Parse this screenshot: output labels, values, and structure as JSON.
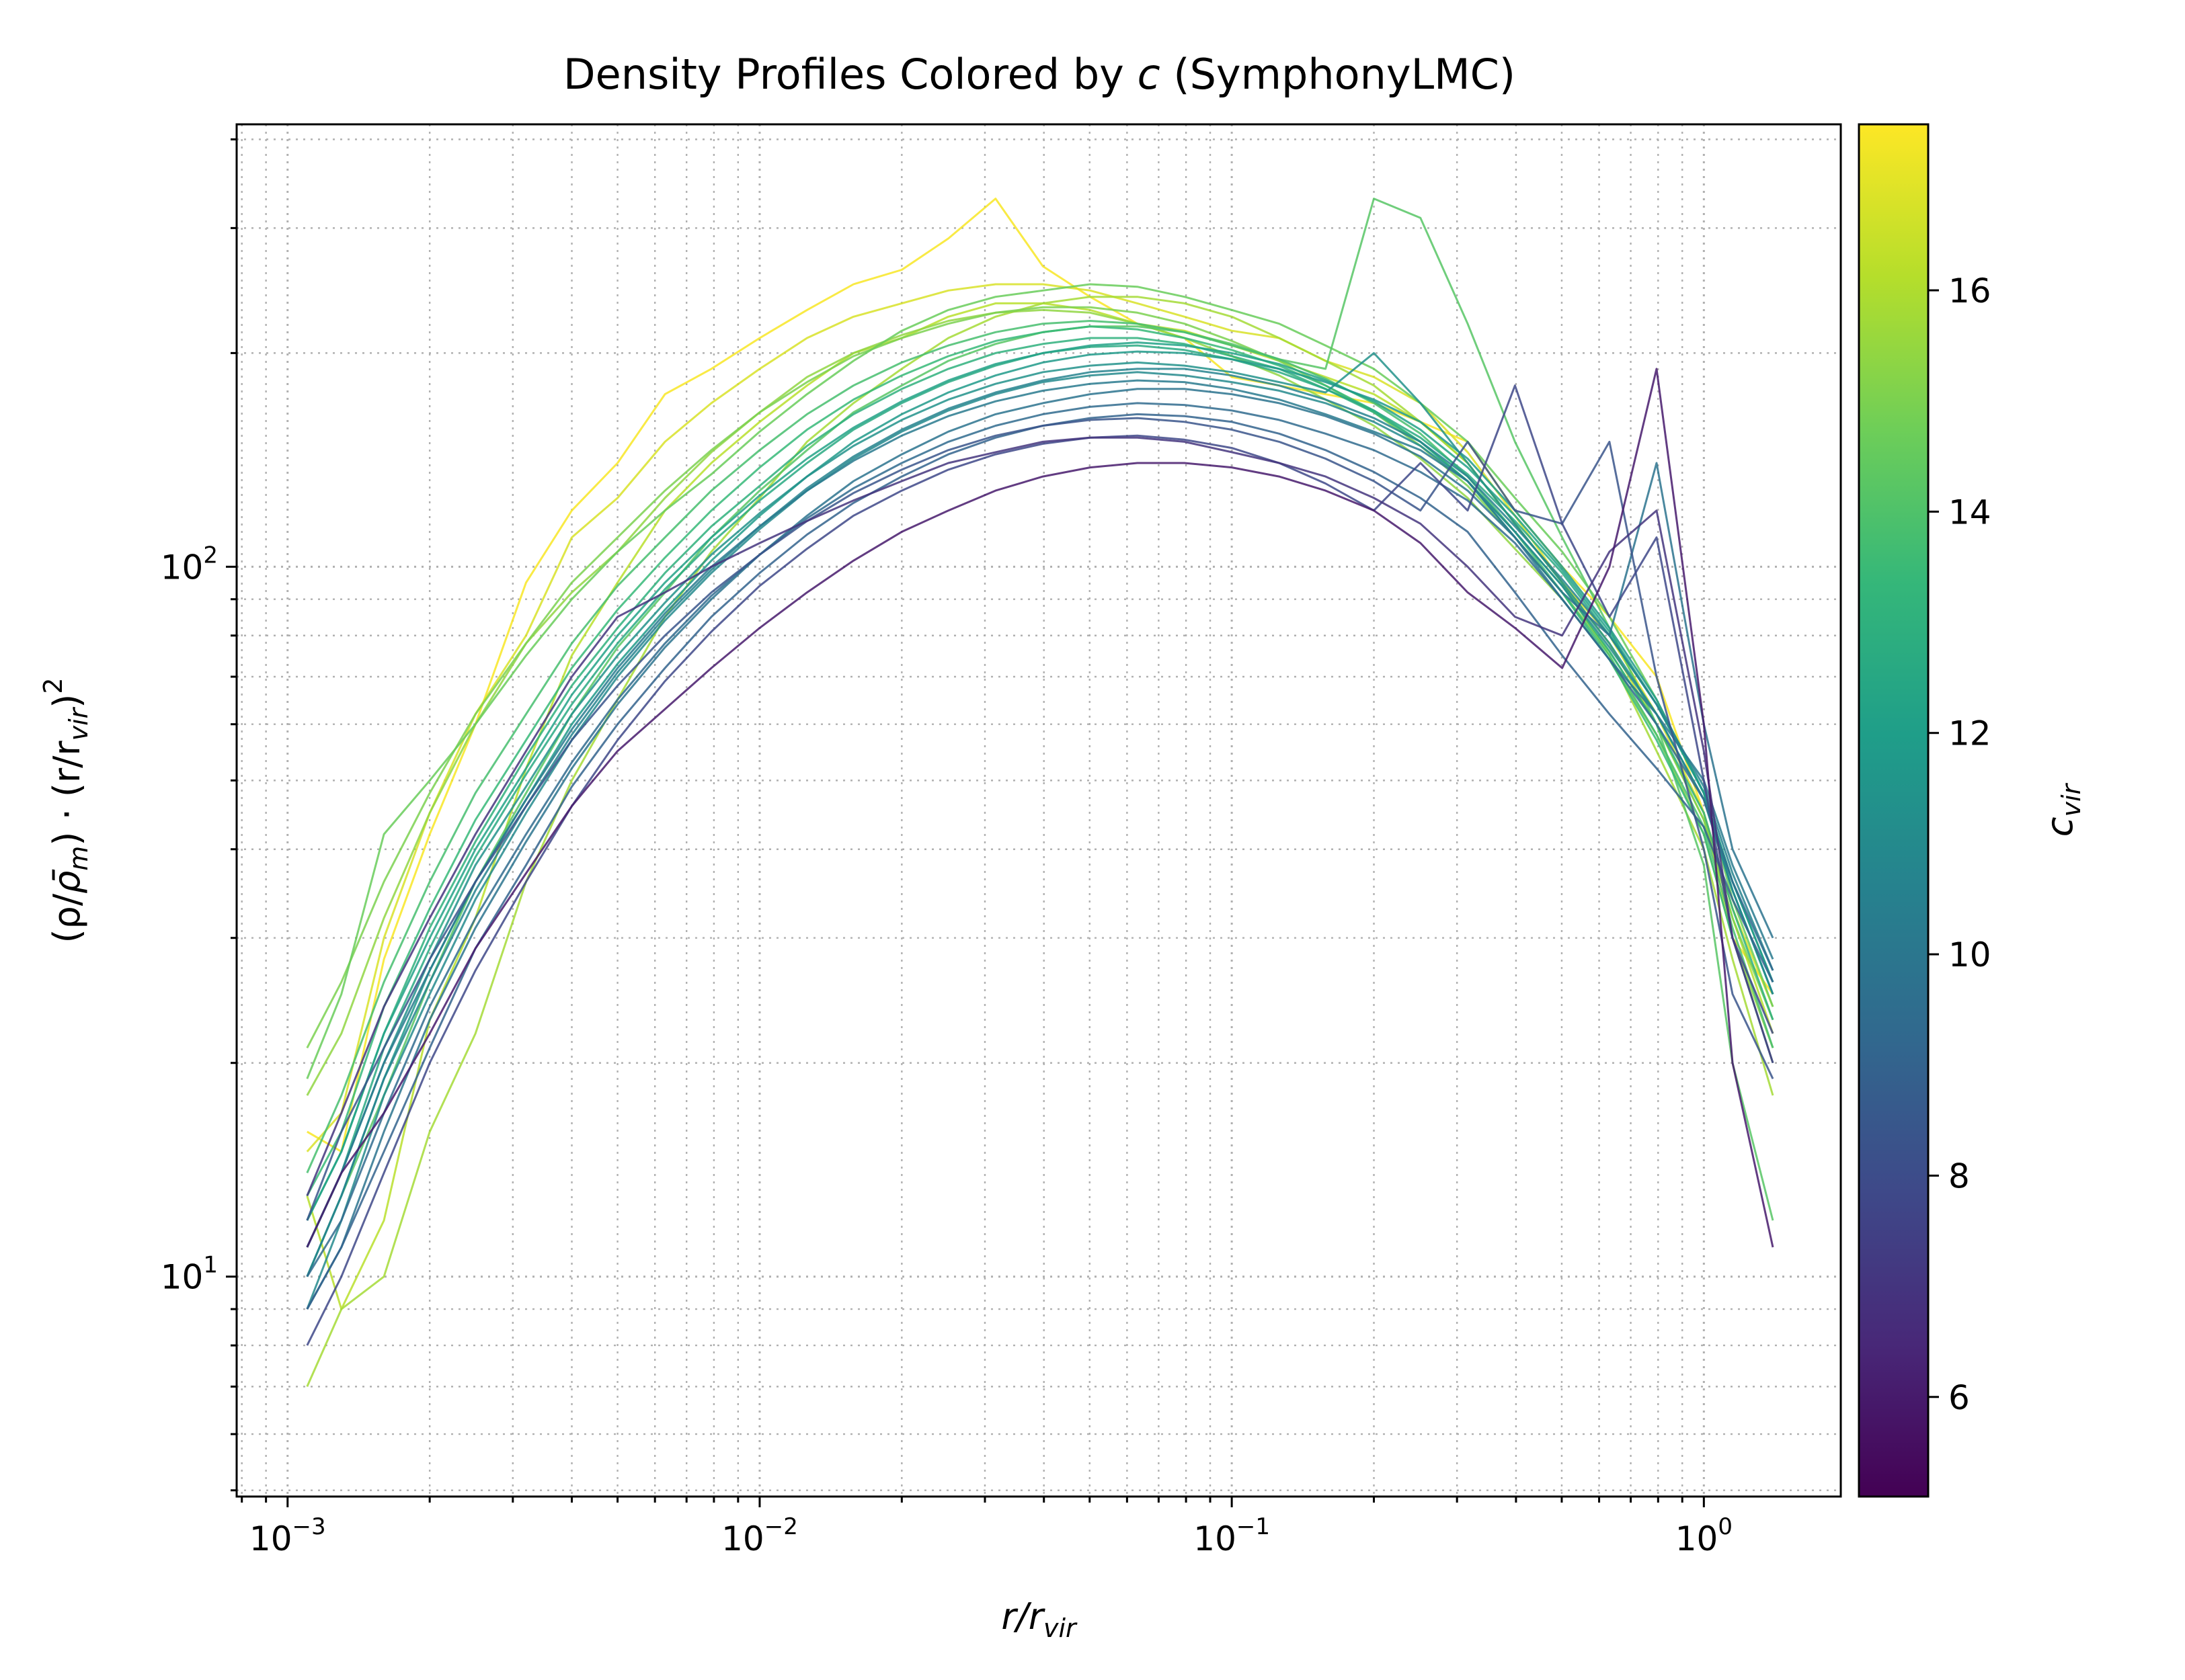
{
  "chart_data": {
    "type": "line",
    "title_prefix": "Density Profiles Colored by ",
    "title_var": "c",
    "title_suffix": " (SymphonyLMC)",
    "xlabel_main": "r/r",
    "xlabel_sub": "vir",
    "ylabel_left": "(ρ/",
    "ylabel_rhobar": "ρ̄",
    "ylabel_m": "m",
    "ylabel_mid": ") · (r/r",
    "ylabel_vir": "vir",
    "ylabel_close": ")",
    "ylabel_exp": "2",
    "colorbar_label_main": "c",
    "colorbar_label_sub": "vir",
    "x_scale": "log",
    "y_scale": "log",
    "xlim": [
      0.00078,
      1.95
    ],
    "ylim": [
      4.9,
      420
    ],
    "grid": "major and minor, dotted",
    "colormap": "viridis",
    "viridis_stops": [
      "#440154",
      "#482878",
      "#3e4989",
      "#31688e",
      "#26828e",
      "#1f9e89",
      "#35b779",
      "#6ece58",
      "#b5de2b",
      "#fde725"
    ],
    "colorbar_range": [
      5.1,
      17.5
    ],
    "x_ticks": [
      {
        "value": 0.001,
        "base": "10",
        "exp": "−3"
      },
      {
        "value": 0.01,
        "base": "10",
        "exp": "−2"
      },
      {
        "value": 0.1,
        "base": "10",
        "exp": "−1"
      },
      {
        "value": 1,
        "base": "10",
        "exp": "0"
      }
    ],
    "y_ticks": [
      {
        "value": 10,
        "base": "10",
        "exp": "1"
      },
      {
        "value": 100,
        "base": "10",
        "exp": "2"
      }
    ],
    "colorbar_ticks": [
      "6",
      "8",
      "10",
      "12",
      "14",
      "16"
    ],
    "r_values": [
      0.0011,
      0.0013,
      0.0016,
      0.002,
      0.0025,
      0.0032,
      0.004,
      0.005,
      0.0063,
      0.0079,
      0.01,
      0.0126,
      0.0158,
      0.02,
      0.0251,
      0.0316,
      0.0398,
      0.0501,
      0.0631,
      0.0794,
      0.1,
      0.126,
      0.158,
      0.2,
      0.251,
      0.316,
      0.398,
      0.501,
      0.631,
      0.794,
      1.0,
      1.15,
      1.4
    ],
    "series": [
      {
        "c": 17.4,
        "values": [
          16,
          15,
          28,
          42,
          60,
          95,
          120,
          140,
          175,
          190,
          210,
          230,
          250,
          262,
          290,
          330,
          265,
          240,
          220,
          210,
          185,
          180,
          175,
          170,
          160,
          150,
          120,
          100,
          85,
          70,
          45,
          30,
          25
        ]
      },
      {
        "c": 16.8,
        "values": [
          15,
          17,
          30,
          45,
          62,
          80,
          110,
          125,
          150,
          170,
          190,
          210,
          225,
          235,
          245,
          250,
          250,
          245,
          235,
          225,
          215,
          210,
          195,
          185,
          170,
          145,
          118,
          95,
          80,
          62,
          45,
          33,
          24
        ]
      },
      {
        "c": 16.2,
        "values": [
          13,
          9,
          12,
          23,
          32,
          52,
          75,
          95,
          120,
          140,
          160,
          180,
          200,
          210,
          225,
          235,
          235,
          230,
          220,
          215,
          205,
          195,
          185,
          175,
          160,
          140,
          115,
          95,
          78,
          60,
          44,
          32,
          22
        ]
      },
      {
        "c": 15.8,
        "values": [
          7,
          9,
          10,
          16,
          22,
          36,
          50,
          65,
          85,
          105,
          125,
          150,
          170,
          190,
          210,
          225,
          235,
          240,
          240,
          235,
          225,
          210,
          195,
          180,
          160,
          140,
          115,
          95,
          75,
          55,
          40,
          28,
          18
        ]
      },
      {
        "c": 15.4,
        "values": [
          18,
          22,
          32,
          45,
          60,
          78,
          92,
          105,
          125,
          145,
          165,
          185,
          200,
          212,
          222,
          228,
          230,
          228,
          220,
          210,
          198,
          186,
          172,
          158,
          142,
          125,
          106,
          90,
          74,
          58,
          42,
          30,
          21
        ]
      },
      {
        "c": 15.0,
        "values": [
          21,
          26,
          36,
          48,
          62,
          78,
          95,
          110,
          128,
          146,
          165,
          182,
          198,
          210,
          220,
          228,
          232,
          232,
          228,
          220,
          208,
          195,
          180,
          165,
          148,
          130,
          110,
          92,
          76,
          60,
          44,
          32,
          23
        ]
      },
      {
        "c": 14.6,
        "values": [
          19,
          25,
          42,
          50,
          60,
          75,
          90,
          105,
          120,
          135,
          155,
          175,
          195,
          215,
          230,
          240,
          245,
          250,
          248,
          240,
          230,
          220,
          205,
          190,
          170,
          150,
          125,
          105,
          85,
          65,
          48,
          34,
          24
        ]
      },
      {
        "c": 14.2,
        "values": [
          10,
          13,
          18,
          26,
          36,
          48,
          62,
          77,
          92,
          110,
          128,
          146,
          165,
          180,
          195,
          206,
          214,
          218,
          218,
          214,
          206,
          196,
          190,
          330,
          310,
          220,
          150,
          110,
          82,
          60,
          38,
          20,
          12
        ]
      },
      {
        "c": 13.8,
        "values": [
          14,
          18,
          26,
          36,
          48,
          62,
          78,
          94,
          110,
          128,
          146,
          164,
          180,
          194,
          205,
          214,
          220,
          222,
          220,
          214,
          205,
          196,
          184,
          170,
          154,
          134,
          112,
          92,
          75,
          58,
          43,
          31,
          21
        ]
      },
      {
        "c": 13.4,
        "values": [
          13,
          16,
          24,
          33,
          44,
          57,
          72,
          87,
          103,
          120,
          138,
          156,
          172,
          186,
          198,
          208,
          214,
          218,
          216,
          210,
          202,
          192,
          180,
          166,
          150,
          132,
          110,
          92,
          74,
          57,
          42,
          30,
          20
        ]
      },
      {
        "c": 13.0,
        "values": [
          12,
          15,
          22,
          31,
          41,
          54,
          68,
          82,
          98,
          114,
          130,
          148,
          164,
          178,
          190,
          200,
          206,
          210,
          210,
          206,
          198,
          190,
          178,
          165,
          150,
          132,
          112,
          94,
          76,
          60,
          45,
          33,
          23
        ]
      },
      {
        "c": 12.6,
        "values": [
          11,
          14,
          21,
          29,
          39,
          51,
          64,
          78,
          93,
          108,
          124,
          140,
          156,
          170,
          182,
          192,
          200,
          204,
          205,
          202,
          196,
          188,
          178,
          166,
          152,
          135,
          116,
          98,
          80,
          64,
          48,
          36,
          26
        ]
      },
      {
        "c": 12.2,
        "values": [
          12,
          15,
          22,
          30,
          40,
          52,
          66,
          80,
          95,
          110,
          126,
          142,
          157,
          171,
          183,
          193,
          200,
          205,
          207,
          205,
          200,
          193,
          183,
          171,
          156,
          138,
          118,
          99,
          81,
          64,
          48,
          35,
          25
        ]
      },
      {
        "c": 11.8,
        "values": [
          10,
          13,
          19,
          27,
          36,
          47,
          60,
          73,
          87,
          102,
          118,
          134,
          150,
          164,
          176,
          186,
          194,
          199,
          201,
          200,
          196,
          190,
          182,
          172,
          160,
          142,
          120,
          100,
          82,
          65,
          48,
          36,
          26
        ]
      },
      {
        "c": 11.4,
        "values": [
          11,
          14,
          20,
          28,
          38,
          49,
          62,
          75,
          89,
          104,
          119,
          134,
          148,
          161,
          172,
          181,
          188,
          192,
          194,
          192,
          188,
          182,
          176,
          200,
          170,
          140,
          115,
          95,
          78,
          62,
          47,
          35,
          25
        ]
      },
      {
        "c": 11.0,
        "values": [
          9,
          12,
          18,
          25,
          34,
          45,
          57,
          70,
          84,
          98,
          113,
          128,
          142,
          155,
          166,
          175,
          182,
          186,
          188,
          186,
          182,
          177,
          170,
          160,
          148,
          132,
          112,
          94,
          77,
          62,
          47,
          35,
          25
        ]
      },
      {
        "c": 10.6,
        "values": [
          10,
          13,
          19,
          26,
          35,
          46,
          58,
          71,
          85,
          99,
          114,
          129,
          143,
          156,
          167,
          176,
          183,
          188,
          190,
          190,
          186,
          180,
          172,
          162,
          150,
          134,
          114,
          96,
          80,
          64,
          49,
          37,
          27
        ]
      },
      {
        "c": 10.2,
        "values": [
          11,
          14,
          20,
          27,
          36,
          47,
          59,
          72,
          86,
          100,
          114,
          128,
          141,
          153,
          163,
          171,
          177,
          181,
          183,
          182,
          178,
          172,
          164,
          155,
          146,
          132,
          110,
          90,
          74,
          62,
          50,
          38,
          28
        ]
      },
      {
        "c": 9.8,
        "values": [
          9,
          11,
          16,
          23,
          31,
          41,
          52,
          64,
          77,
          90,
          104,
          118,
          132,
          144,
          155,
          164,
          170,
          175,
          178,
          178,
          175,
          170,
          163,
          154,
          143,
          128,
          110,
          92,
          80,
          140,
          60,
          40,
          30
        ]
      },
      {
        "c": 9.4,
        "values": [
          10,
          12,
          17,
          24,
          32,
          42,
          53,
          65,
          78,
          91,
          104,
          117,
          129,
          140,
          150,
          158,
          164,
          168,
          170,
          169,
          166,
          161,
          154,
          146,
          136,
          124,
          108,
          90,
          74,
          60,
          47,
          36,
          27
        ]
      },
      {
        "c": 9.0,
        "values": [
          9,
          11,
          15,
          21,
          29,
          38,
          49,
          60,
          72,
          85,
          98,
          111,
          123,
          134,
          144,
          152,
          158,
          162,
          164,
          163,
          160,
          154,
          146,
          136,
          125,
          112,
          92,
          75,
          62,
          52,
          43,
          34,
          26
        ]
      },
      {
        "c": 8.4,
        "values": [
          12,
          16,
          21,
          28,
          36,
          46,
          57,
          68,
          80,
          92,
          104,
          116,
          127,
          137,
          146,
          153,
          158,
          161,
          162,
          160,
          156,
          150,
          142,
          132,
          120,
          150,
          120,
          115,
          150,
          70,
          40,
          25,
          19
        ]
      },
      {
        "c": 7.8,
        "values": [
          8,
          10,
          14,
          20,
          27,
          36,
          46,
          57,
          69,
          81,
          94,
          106,
          118,
          128,
          137,
          144,
          149,
          152,
          153,
          151,
          147,
          140,
          131,
          120,
          140,
          120,
          180,
          115,
          85,
          110,
          50,
          30,
          22
        ]
      },
      {
        "c": 7.0,
        "values": [
          13,
          17,
          24,
          32,
          42,
          55,
          70,
          85,
          92,
          100,
          108,
          116,
          124,
          132,
          140,
          145,
          150,
          152,
          152,
          150,
          145,
          140,
          134,
          125,
          115,
          100,
          85,
          80,
          105,
          120,
          55,
          30,
          20
        ]
      },
      {
        "c": 6.0,
        "values": [
          11,
          14,
          17,
          22,
          29,
          37,
          46,
          55,
          63,
          72,
          82,
          92,
          102,
          112,
          120,
          128,
          134,
          138,
          140,
          140,
          138,
          134,
          128,
          120,
          108,
          92,
          82,
          72,
          100,
          190,
          60,
          20,
          11
        ]
      }
    ]
  }
}
